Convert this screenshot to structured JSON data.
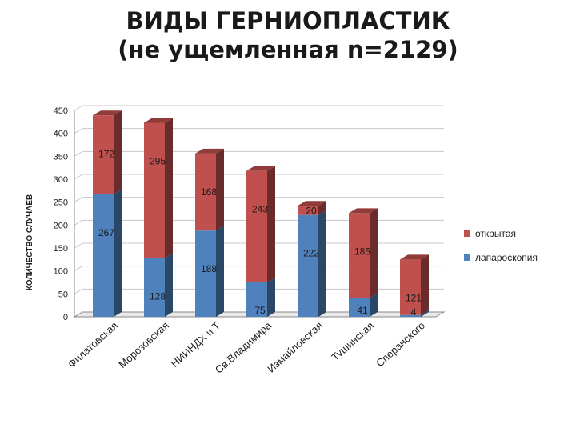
{
  "chart_data": {
    "type": "bar",
    "stacked": true,
    "title": "ВИДЫ ГЕРНИОПЛАСТИК",
    "subtitle": "(не ущемленная n=2129)",
    "ylabel": "КОЛИЧЕСТВО СЛУЧАЕВ",
    "xlabel": "",
    "ylim": [
      0,
      450
    ],
    "yticks": [
      "0",
      "50",
      "100",
      "150",
      "200",
      "250",
      "300",
      "350",
      "400",
      "450"
    ],
    "grid": true,
    "legend_position": "right",
    "categories": [
      "Филатовская",
      "Морозовская",
      "НИИНДХ и Т",
      "Св.Владимира",
      "Измайловская",
      "Тушинская",
      "Сперанского"
    ],
    "series": [
      {
        "name": "лапароскопия",
        "color": "#4f81bd",
        "values": [
          267,
          128,
          188,
          75,
          222,
          41,
          4
        ]
      },
      {
        "name": "открытая",
        "color": "#c0504d",
        "values": [
          172,
          295,
          168,
          243,
          20,
          185,
          121
        ]
      }
    ]
  }
}
